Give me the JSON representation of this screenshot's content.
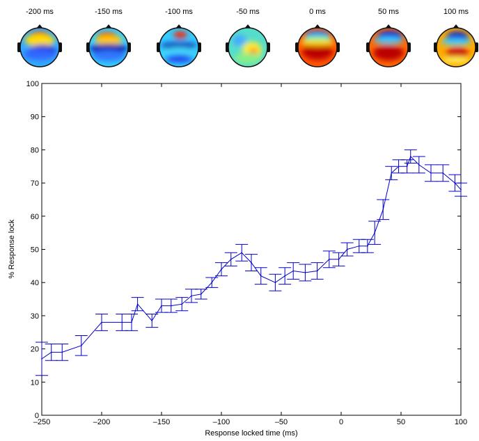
{
  "topomaps": {
    "labels": [
      "-200 ms",
      "-150 ms",
      "-100 ms",
      "-50 ms",
      "0 ms",
      "50 ms",
      "100 ms"
    ]
  },
  "chart_data": {
    "type": "line",
    "xlabel": "Response locked time (ms)",
    "ylabel": "% Response lock",
    "xlim": [
      -250,
      100
    ],
    "ylim": [
      0,
      100
    ],
    "xticks": [
      -250,
      -200,
      -150,
      -100,
      -50,
      0,
      50,
      100
    ],
    "yticks": [
      0,
      10,
      20,
      30,
      40,
      50,
      60,
      70,
      80,
      90,
      100
    ],
    "grid": false,
    "color": "#0000cc",
    "series": [
      {
        "x": [
          -250,
          -242,
          -233,
          -217,
          -200,
          -183,
          -175,
          -170,
          -158,
          -150,
          -142,
          -133,
          -125,
          -117,
          -108,
          -100,
          -92,
          -83,
          -75,
          -67,
          -55,
          -47,
          -40,
          -30,
          -20,
          -10,
          -2,
          5,
          15,
          22,
          28,
          35,
          42,
          48,
          55,
          58,
          65,
          75,
          85,
          95,
          100
        ],
        "y": [
          17,
          19,
          19,
          21,
          28,
          28,
          28,
          33.5,
          28.5,
          33,
          33,
          33.5,
          36,
          36.5,
          40,
          44,
          47,
          49,
          46,
          42,
          40,
          42,
          43.5,
          43,
          43.5,
          47,
          47,
          50,
          51,
          51,
          55,
          62,
          73,
          75,
          75,
          78,
          75.5,
          73,
          73,
          70,
          68
        ],
        "err": [
          5,
          2.5,
          2.5,
          3,
          2.5,
          2.5,
          2.5,
          2,
          2,
          2,
          2,
          2,
          2,
          1.5,
          1.5,
          2,
          2,
          2.5,
          2.5,
          2.5,
          2.5,
          2.5,
          2.5,
          2.5,
          2.5,
          2.5,
          2,
          2,
          2,
          2,
          3.5,
          3,
          2,
          2,
          2,
          2,
          2.5,
          2.5,
          2.5,
          2.5,
          2
        ]
      }
    ]
  }
}
